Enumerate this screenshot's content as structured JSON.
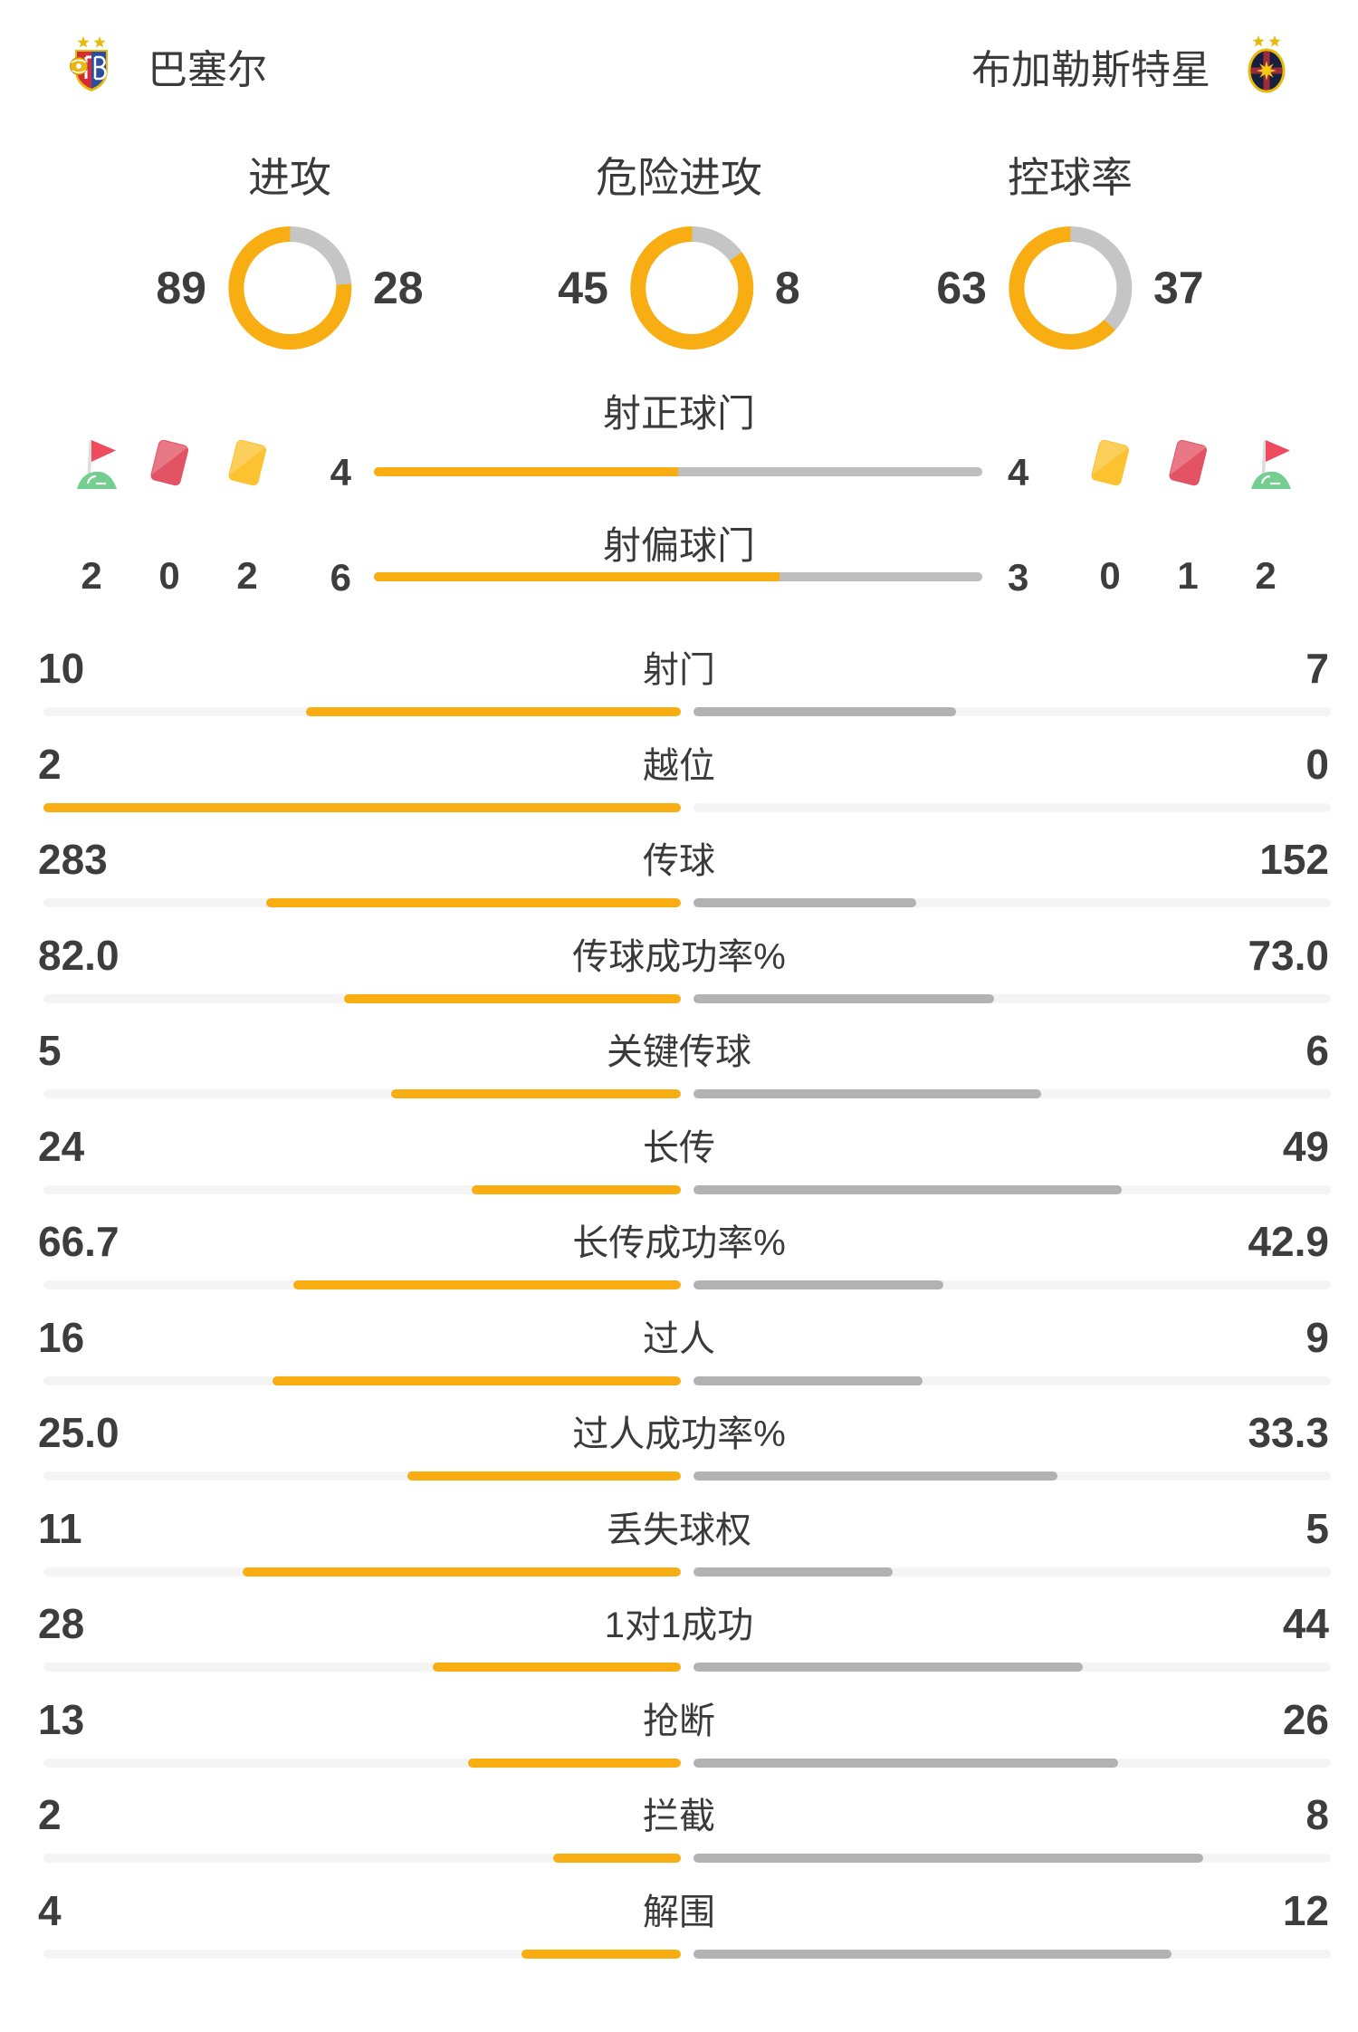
{
  "teams": {
    "home": {
      "name": "巴塞尔"
    },
    "away": {
      "name": "布加勒斯特星"
    }
  },
  "donuts": [
    {
      "key": "attacks",
      "label": "进攻",
      "home": 89,
      "away": 28
    },
    {
      "key": "dangerous-attacks",
      "label": "危险进攻",
      "home": 45,
      "away": 8
    },
    {
      "key": "possession",
      "label": "控球率",
      "home": 63,
      "away": 37
    }
  ],
  "shot_bars": [
    {
      "key": "shots-on-target",
      "label": "射正球门",
      "home": 4,
      "away": 4
    },
    {
      "key": "shots-off-target",
      "label": "射偏球门",
      "home": 6,
      "away": 3
    }
  ],
  "discipline": {
    "home": {
      "icons": [
        "corner-flag",
        "red-card",
        "yellow-card"
      ],
      "counts": [
        2,
        0,
        2
      ]
    },
    "away": {
      "icons": [
        "yellow-card",
        "red-card",
        "corner-flag"
      ],
      "counts": [
        0,
        1,
        2
      ]
    }
  },
  "stats": [
    {
      "label": "射门",
      "home": "10",
      "away": "7"
    },
    {
      "label": "越位",
      "home": "2",
      "away": "0"
    },
    {
      "label": "传球",
      "home": "283",
      "away": "152"
    },
    {
      "label": "传球成功率%",
      "home": "82.0",
      "away": "73.0"
    },
    {
      "label": "关键传球",
      "home": "5",
      "away": "6"
    },
    {
      "label": "长传",
      "home": "24",
      "away": "49"
    },
    {
      "label": "长传成功率%",
      "home": "66.7",
      "away": "42.9"
    },
    {
      "label": "过人",
      "home": "16",
      "away": "9"
    },
    {
      "label": "过人成功率%",
      "home": "25.0",
      "away": "33.3"
    },
    {
      "label": "丢失球权",
      "home": "11",
      "away": "5"
    },
    {
      "label": "1对1成功",
      "home": "28",
      "away": "44"
    },
    {
      "label": "抢断",
      "home": "13",
      "away": "26"
    },
    {
      "label": "拦截",
      "home": "2",
      "away": "8"
    },
    {
      "label": "解围",
      "home": "4",
      "away": "12"
    }
  ],
  "colors": {
    "home_yellow": "#F8AE13",
    "away_bar_gray": "#B2B2B2",
    "shots_away_gray": "#BEBEBE",
    "donut_away_gray": "#C5C5C5",
    "track_gray": "#F4F4F4",
    "text": "#3D3D3D",
    "yellow_card": "#FCC230",
    "red_card": "#E25364",
    "flag_red": "#EF4B5E",
    "flag_green": "#74CE90"
  }
}
